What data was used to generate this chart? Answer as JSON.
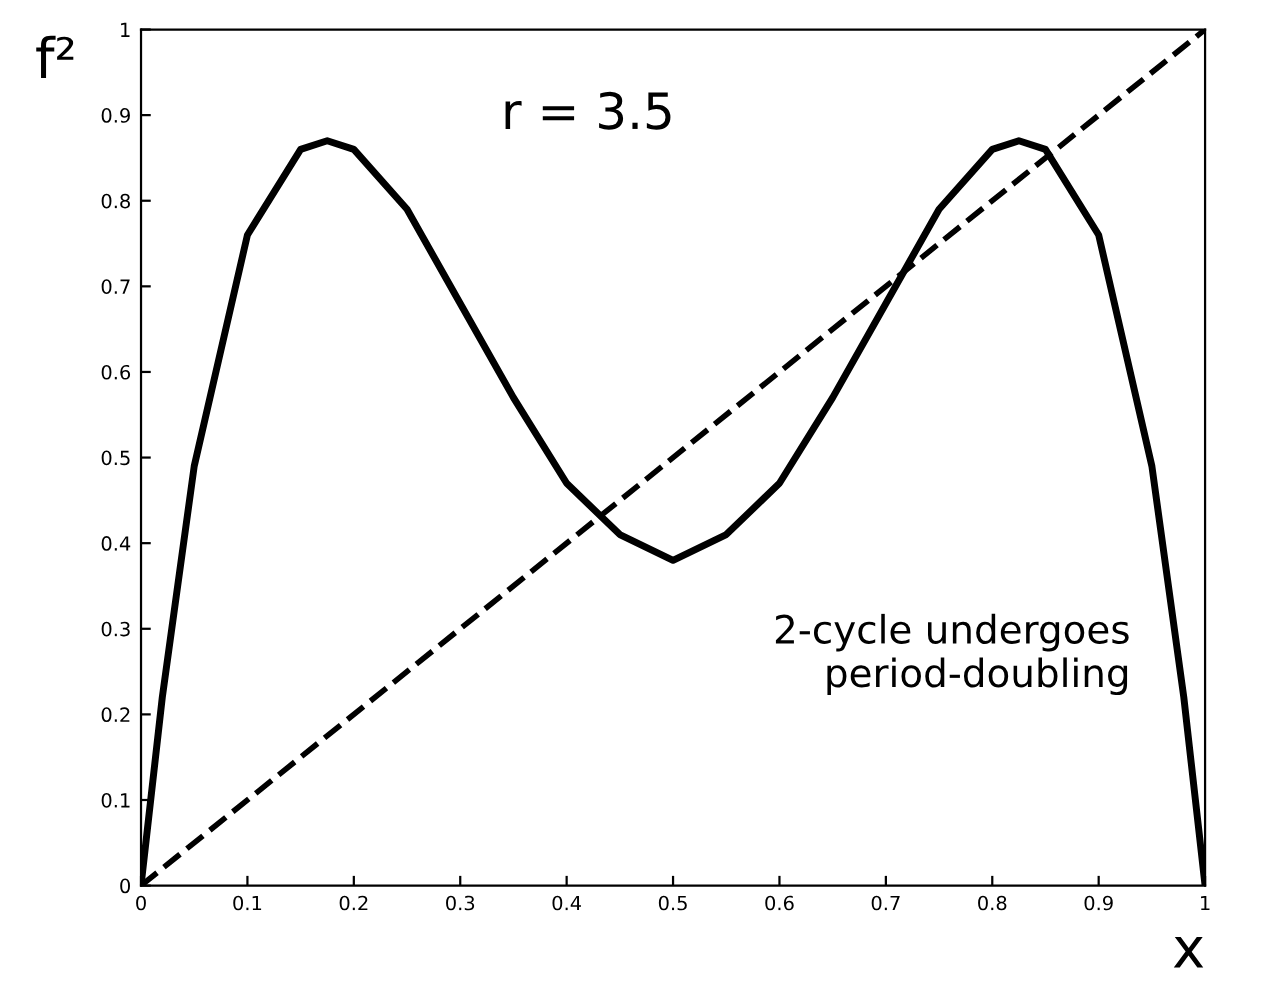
{
  "chart_data": {
    "type": "line",
    "xlabel": "x",
    "ylabel": "f²",
    "annotations": [
      "r = 3.5",
      "2-cycle undergoes\nperiod-doubling"
    ],
    "xlim": [
      0,
      1
    ],
    "ylim": [
      0,
      1
    ],
    "xticks": [
      0,
      0.1,
      0.2,
      0.3,
      0.4,
      0.5,
      0.6,
      0.7,
      0.8,
      0.9,
      1
    ],
    "yticks": [
      0,
      0.1,
      0.2,
      0.3,
      0.4,
      0.5,
      0.6,
      0.7,
      0.8,
      0.9,
      1
    ],
    "grid": false,
    "legend": false,
    "marker": "none",
    "series": [
      {
        "color": "#000000",
        "line_style": "solid",
        "x": [
          0,
          0.02,
          0.05,
          0.1,
          0.15,
          0.175,
          0.2,
          0.25,
          0.3,
          0.35,
          0.4,
          0.45,
          0.5,
          0.55,
          0.6,
          0.65,
          0.7,
          0.75,
          0.8,
          0.825,
          0.85,
          0.9,
          0.95,
          0.98,
          1
        ],
        "values": [
          0,
          0.22,
          0.49,
          0.76,
          0.86,
          0.87,
          0.86,
          0.79,
          0.68,
          0.57,
          0.47,
          0.41,
          0.38,
          0.41,
          0.47,
          0.57,
          0.68,
          0.79,
          0.86,
          0.87,
          0.86,
          0.76,
          0.49,
          0.22,
          0
        ]
      },
      {
        "color": "#000000",
        "line_style": "dashed",
        "x": [
          0,
          1
        ],
        "values": [
          0,
          1
        ]
      }
    ]
  }
}
